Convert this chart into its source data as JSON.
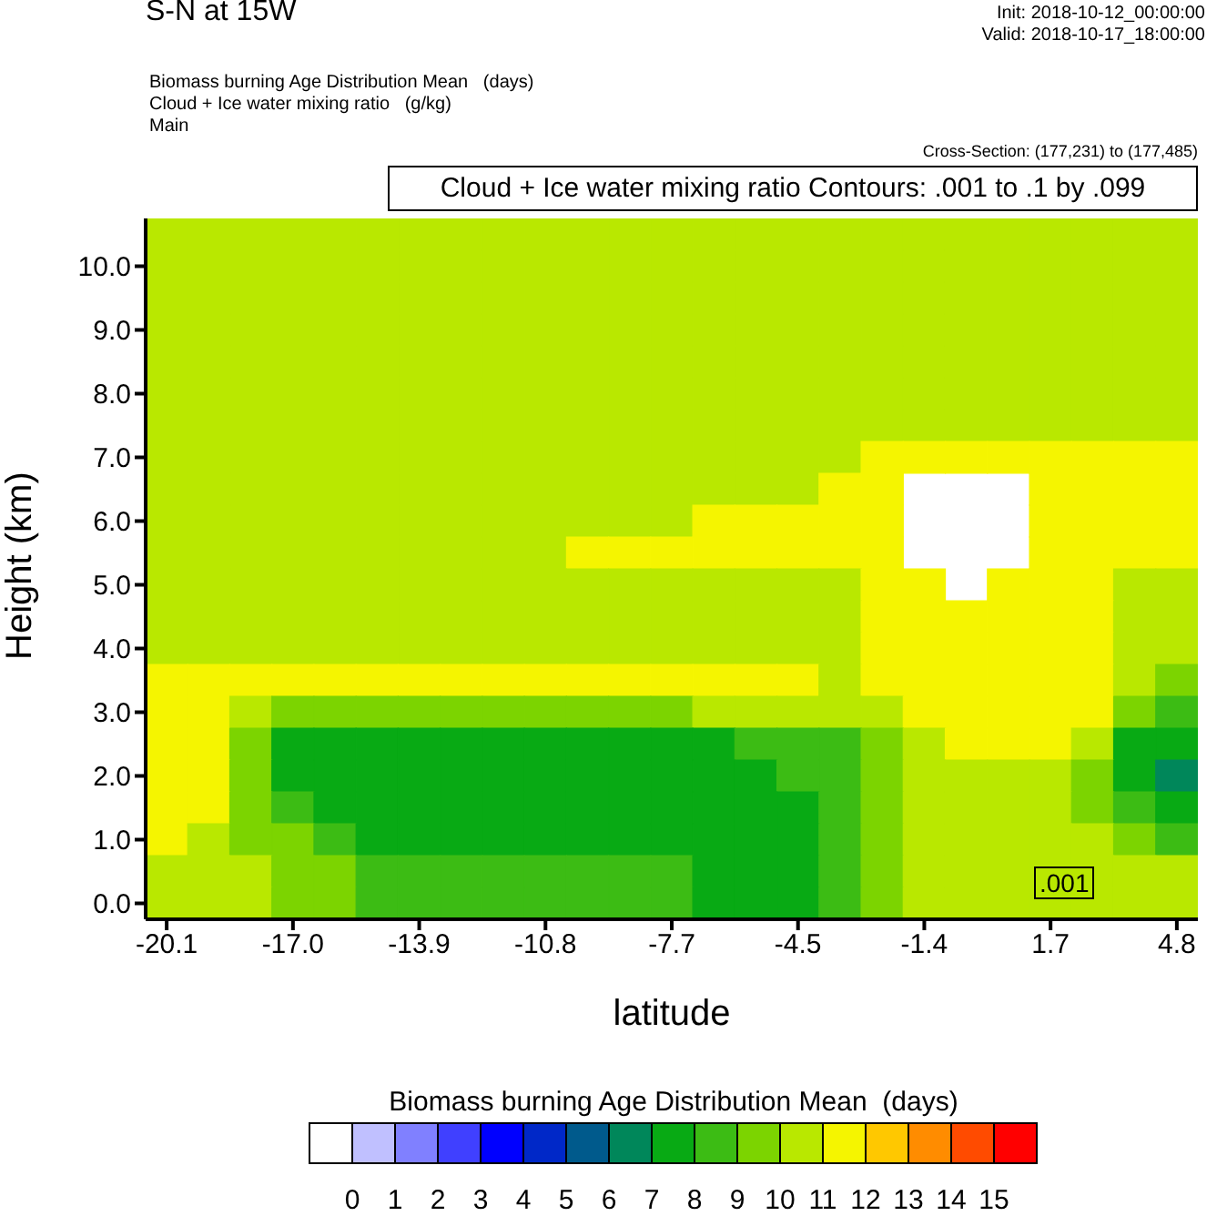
{
  "chart_data": {
    "type": "heatmap",
    "title": "S-N at 15W",
    "xlabel": "latitude",
    "ylabel": "Height (km)",
    "clabel": "Biomass burning Age Distribution Mean  (days)",
    "annotations": [
      "Init: 2018-10-12_00:00:00",
      "Valid: 2018-10-17_18:00:00",
      "Biomass burning Age Distribution Mean   (days)",
      "Cloud + Ice water mixing ratio   (g/kg)",
      "Main",
      "Cross-Section: (177,231) to (177,485)",
      "Cloud + Ice water mixing ratio Contours: .001 to .1 by .099",
      ".001"
    ],
    "categories": [
      "-20.1",
      null,
      null,
      "-17.0",
      null,
      null,
      "-13.9",
      null,
      null,
      "-10.8",
      null,
      null,
      "-7.7",
      null,
      null,
      "-4.5",
      null,
      null,
      "-1.4",
      null,
      null,
      "1.7",
      null,
      null,
      "4.8"
    ],
    "y_categories": [
      null,
      "10.0",
      null,
      "9.0",
      null,
      "8.0",
      null,
      "7.0",
      null,
      "6.0",
      null,
      "5.0",
      null,
      "4.0",
      null,
      "3.0",
      null,
      "2.0",
      null,
      "1.0",
      null,
      "0.0"
    ],
    "clim": [
      -1,
      16
    ],
    "cticks": [
      0,
      1,
      2,
      3,
      4,
      5,
      6,
      7,
      8,
      9,
      10,
      11,
      12,
      13,
      14,
      15
    ],
    "colors": [
      "#ffffff",
      "#c0c0ff",
      "#8080ff",
      "#4040ff",
      "#0000ff",
      "#0028c8",
      "#005a8c",
      "#00875a",
      "#08aa14",
      "#3cbc14",
      "#7cd400",
      "#b9e800",
      "#f5f500",
      "#ffc800",
      "#ff8c00",
      "#ff4b00",
      "#ff0000"
    ],
    "cells": [
      [
        10.5,
        10.5,
        10.5,
        10.5,
        10.5,
        10.5,
        10.5,
        10.5,
        10.5,
        10.5,
        10.5,
        10.5,
        10.5,
        10.5,
        10.5,
        10.5,
        10.5,
        10.5,
        10.5,
        10.5,
        10.5,
        10.5,
        10.5,
        10.5,
        10.5
      ],
      [
        10.5,
        10.5,
        10.5,
        10.5,
        10.5,
        10.5,
        10.5,
        10.5,
        10.5,
        10.5,
        10.5,
        10.5,
        10.5,
        10.5,
        10.5,
        10.5,
        10.5,
        10.5,
        10.5,
        10.5,
        10.5,
        10.5,
        10.5,
        10.5,
        10.5
      ],
      [
        10.5,
        10.5,
        10.5,
        10.5,
        10.5,
        10.5,
        10.5,
        10.5,
        10.5,
        10.5,
        10.5,
        10.5,
        10.5,
        10.5,
        10.5,
        10.5,
        10.5,
        10.5,
        10.5,
        10.5,
        10.5,
        10.5,
        10.5,
        10.5,
        10.5
      ],
      [
        10.5,
        10.5,
        10.5,
        10.5,
        10.5,
        10.5,
        10.5,
        10.5,
        10.5,
        10.5,
        10.5,
        10.5,
        10.5,
        10.5,
        10.5,
        10.5,
        10.5,
        10.5,
        10.5,
        10.5,
        10.5,
        10.5,
        10.5,
        10.5,
        10.5
      ],
      [
        10.5,
        10.5,
        10.5,
        10.5,
        10.5,
        10.5,
        10.5,
        10.5,
        10.5,
        10.5,
        10.5,
        10.5,
        10.5,
        10.5,
        10.5,
        10.5,
        10.5,
        10.5,
        10.5,
        10.5,
        10.5,
        10.5,
        10.5,
        10.5,
        10.5
      ],
      [
        10.5,
        10.5,
        10.5,
        10.5,
        10.5,
        10.5,
        10.5,
        10.5,
        10.5,
        10.5,
        10.5,
        10.5,
        10.5,
        10.5,
        10.5,
        10.5,
        10.5,
        10.5,
        10.5,
        10.5,
        10.5,
        10.5,
        10.5,
        10.5,
        10.5
      ],
      [
        10.5,
        10.5,
        10.5,
        10.5,
        10.5,
        10.5,
        10.5,
        10.5,
        10.5,
        10.5,
        10.5,
        10.5,
        10.5,
        10.5,
        10.5,
        10.5,
        10.5,
        10.5,
        10.5,
        10.5,
        10.5,
        10.5,
        10.5,
        10.5,
        10.5
      ],
      [
        10.5,
        10.5,
        10.5,
        10.5,
        10.5,
        10.5,
        10.5,
        10.5,
        10.5,
        10.5,
        10.5,
        10.5,
        10.5,
        10.5,
        10.5,
        10.5,
        10.5,
        11.5,
        11.5,
        11.5,
        11.5,
        11.5,
        11.5,
        11.5,
        11.5
      ],
      [
        10.5,
        10.5,
        10.5,
        10.5,
        10.5,
        10.5,
        10.5,
        10.5,
        10.5,
        10.5,
        10.5,
        10.5,
        10.5,
        10.5,
        10.5,
        10.5,
        11.5,
        11.5,
        null,
        null,
        null,
        11.5,
        11.5,
        11.5,
        11.5
      ],
      [
        10.5,
        10.5,
        10.5,
        10.5,
        10.5,
        10.5,
        10.5,
        10.5,
        10.5,
        10.5,
        10.5,
        10.5,
        10.5,
        11.5,
        11.5,
        11.5,
        11.5,
        11.5,
        null,
        null,
        null,
        11.5,
        11.5,
        11.5,
        11.5
      ],
      [
        10.5,
        10.5,
        10.5,
        10.5,
        10.5,
        10.5,
        10.5,
        10.5,
        10.5,
        10.5,
        11.5,
        11.5,
        11.5,
        11.5,
        11.5,
        11.5,
        11.5,
        11.5,
        null,
        null,
        null,
        11.5,
        11.5,
        11.5,
        11.5
      ],
      [
        10.5,
        10.5,
        10.5,
        10.5,
        10.5,
        10.5,
        10.5,
        10.5,
        10.5,
        10.5,
        10.5,
        10.5,
        10.5,
        10.5,
        10.5,
        10.5,
        10.5,
        11.5,
        11.5,
        null,
        11.5,
        11.5,
        11.5,
        10.5,
        10.5
      ],
      [
        10.5,
        10.5,
        10.5,
        10.5,
        10.5,
        10.5,
        10.5,
        10.5,
        10.5,
        10.5,
        10.5,
        10.5,
        10.5,
        10.5,
        10.5,
        10.5,
        10.5,
        11.5,
        11.5,
        11.5,
        11.5,
        11.5,
        11.5,
        10.5,
        10.5
      ],
      [
        10.5,
        10.5,
        10.5,
        10.5,
        10.5,
        10.5,
        10.5,
        10.5,
        10.5,
        10.5,
        10.5,
        10.5,
        10.5,
        10.5,
        10.5,
        10.5,
        10.5,
        11.5,
        11.5,
        11.5,
        11.5,
        11.5,
        11.5,
        10.5,
        10.5
      ],
      [
        11.5,
        11.5,
        11.5,
        11.5,
        11.5,
        11.5,
        11.5,
        11.5,
        11.5,
        11.5,
        11.5,
        11.5,
        11.5,
        11.5,
        11.5,
        11.5,
        10.5,
        11.5,
        11.5,
        11.5,
        11.5,
        11.5,
        11.5,
        10.5,
        9.5
      ],
      [
        11.5,
        11.5,
        10.5,
        9.5,
        9.5,
        9.5,
        9.5,
        9.5,
        9.5,
        9.5,
        9.5,
        9.5,
        9.5,
        10.5,
        10.5,
        10.5,
        10.5,
        10.5,
        11.5,
        11.5,
        11.5,
        11.5,
        11.5,
        9.5,
        8.5
      ],
      [
        11.5,
        11.5,
        9.5,
        7.5,
        7.5,
        7.5,
        7.5,
        7.5,
        7.5,
        7.5,
        7.5,
        7.5,
        7.5,
        7.5,
        8.5,
        8.5,
        8.5,
        9.5,
        10.5,
        11.5,
        11.5,
        11.5,
        10.5,
        7.5,
        7.5
      ],
      [
        11.5,
        11.5,
        9.5,
        7.5,
        7.5,
        7.5,
        7.5,
        7.5,
        7.5,
        7.5,
        7.5,
        7.5,
        7.5,
        7.5,
        7.5,
        8.5,
        8.5,
        9.5,
        10.5,
        10.5,
        10.5,
        10.5,
        9.5,
        7.5,
        6.5
      ],
      [
        11.5,
        11.5,
        9.5,
        8.5,
        7.5,
        7.5,
        7.5,
        7.5,
        7.5,
        7.5,
        7.5,
        7.5,
        7.5,
        7.5,
        7.5,
        7.5,
        8.5,
        9.5,
        10.5,
        10.5,
        10.5,
        10.5,
        9.5,
        8.5,
        7.5
      ],
      [
        11.5,
        10.5,
        9.5,
        9.5,
        8.5,
        7.5,
        7.5,
        7.5,
        7.5,
        7.5,
        7.5,
        7.5,
        7.5,
        7.5,
        7.5,
        7.5,
        8.5,
        9.5,
        10.5,
        10.5,
        10.5,
        10.5,
        10.5,
        9.5,
        8.5
      ],
      [
        10.5,
        10.5,
        10.5,
        9.5,
        9.5,
        8.5,
        8.5,
        8.5,
        8.5,
        8.5,
        8.5,
        8.5,
        8.5,
        7.5,
        7.5,
        7.5,
        8.5,
        9.5,
        10.5,
        10.5,
        10.5,
        10.5,
        10.5,
        10.5,
        10.5
      ],
      [
        10.5,
        10.5,
        10.5,
        9.5,
        9.5,
        8.5,
        8.5,
        8.5,
        8.5,
        8.5,
        8.5,
        8.5,
        8.5,
        7.5,
        7.5,
        7.5,
        8.5,
        9.5,
        10.5,
        10.5,
        10.5,
        10.5,
        10.5,
        10.5,
        10.5
      ]
    ]
  }
}
